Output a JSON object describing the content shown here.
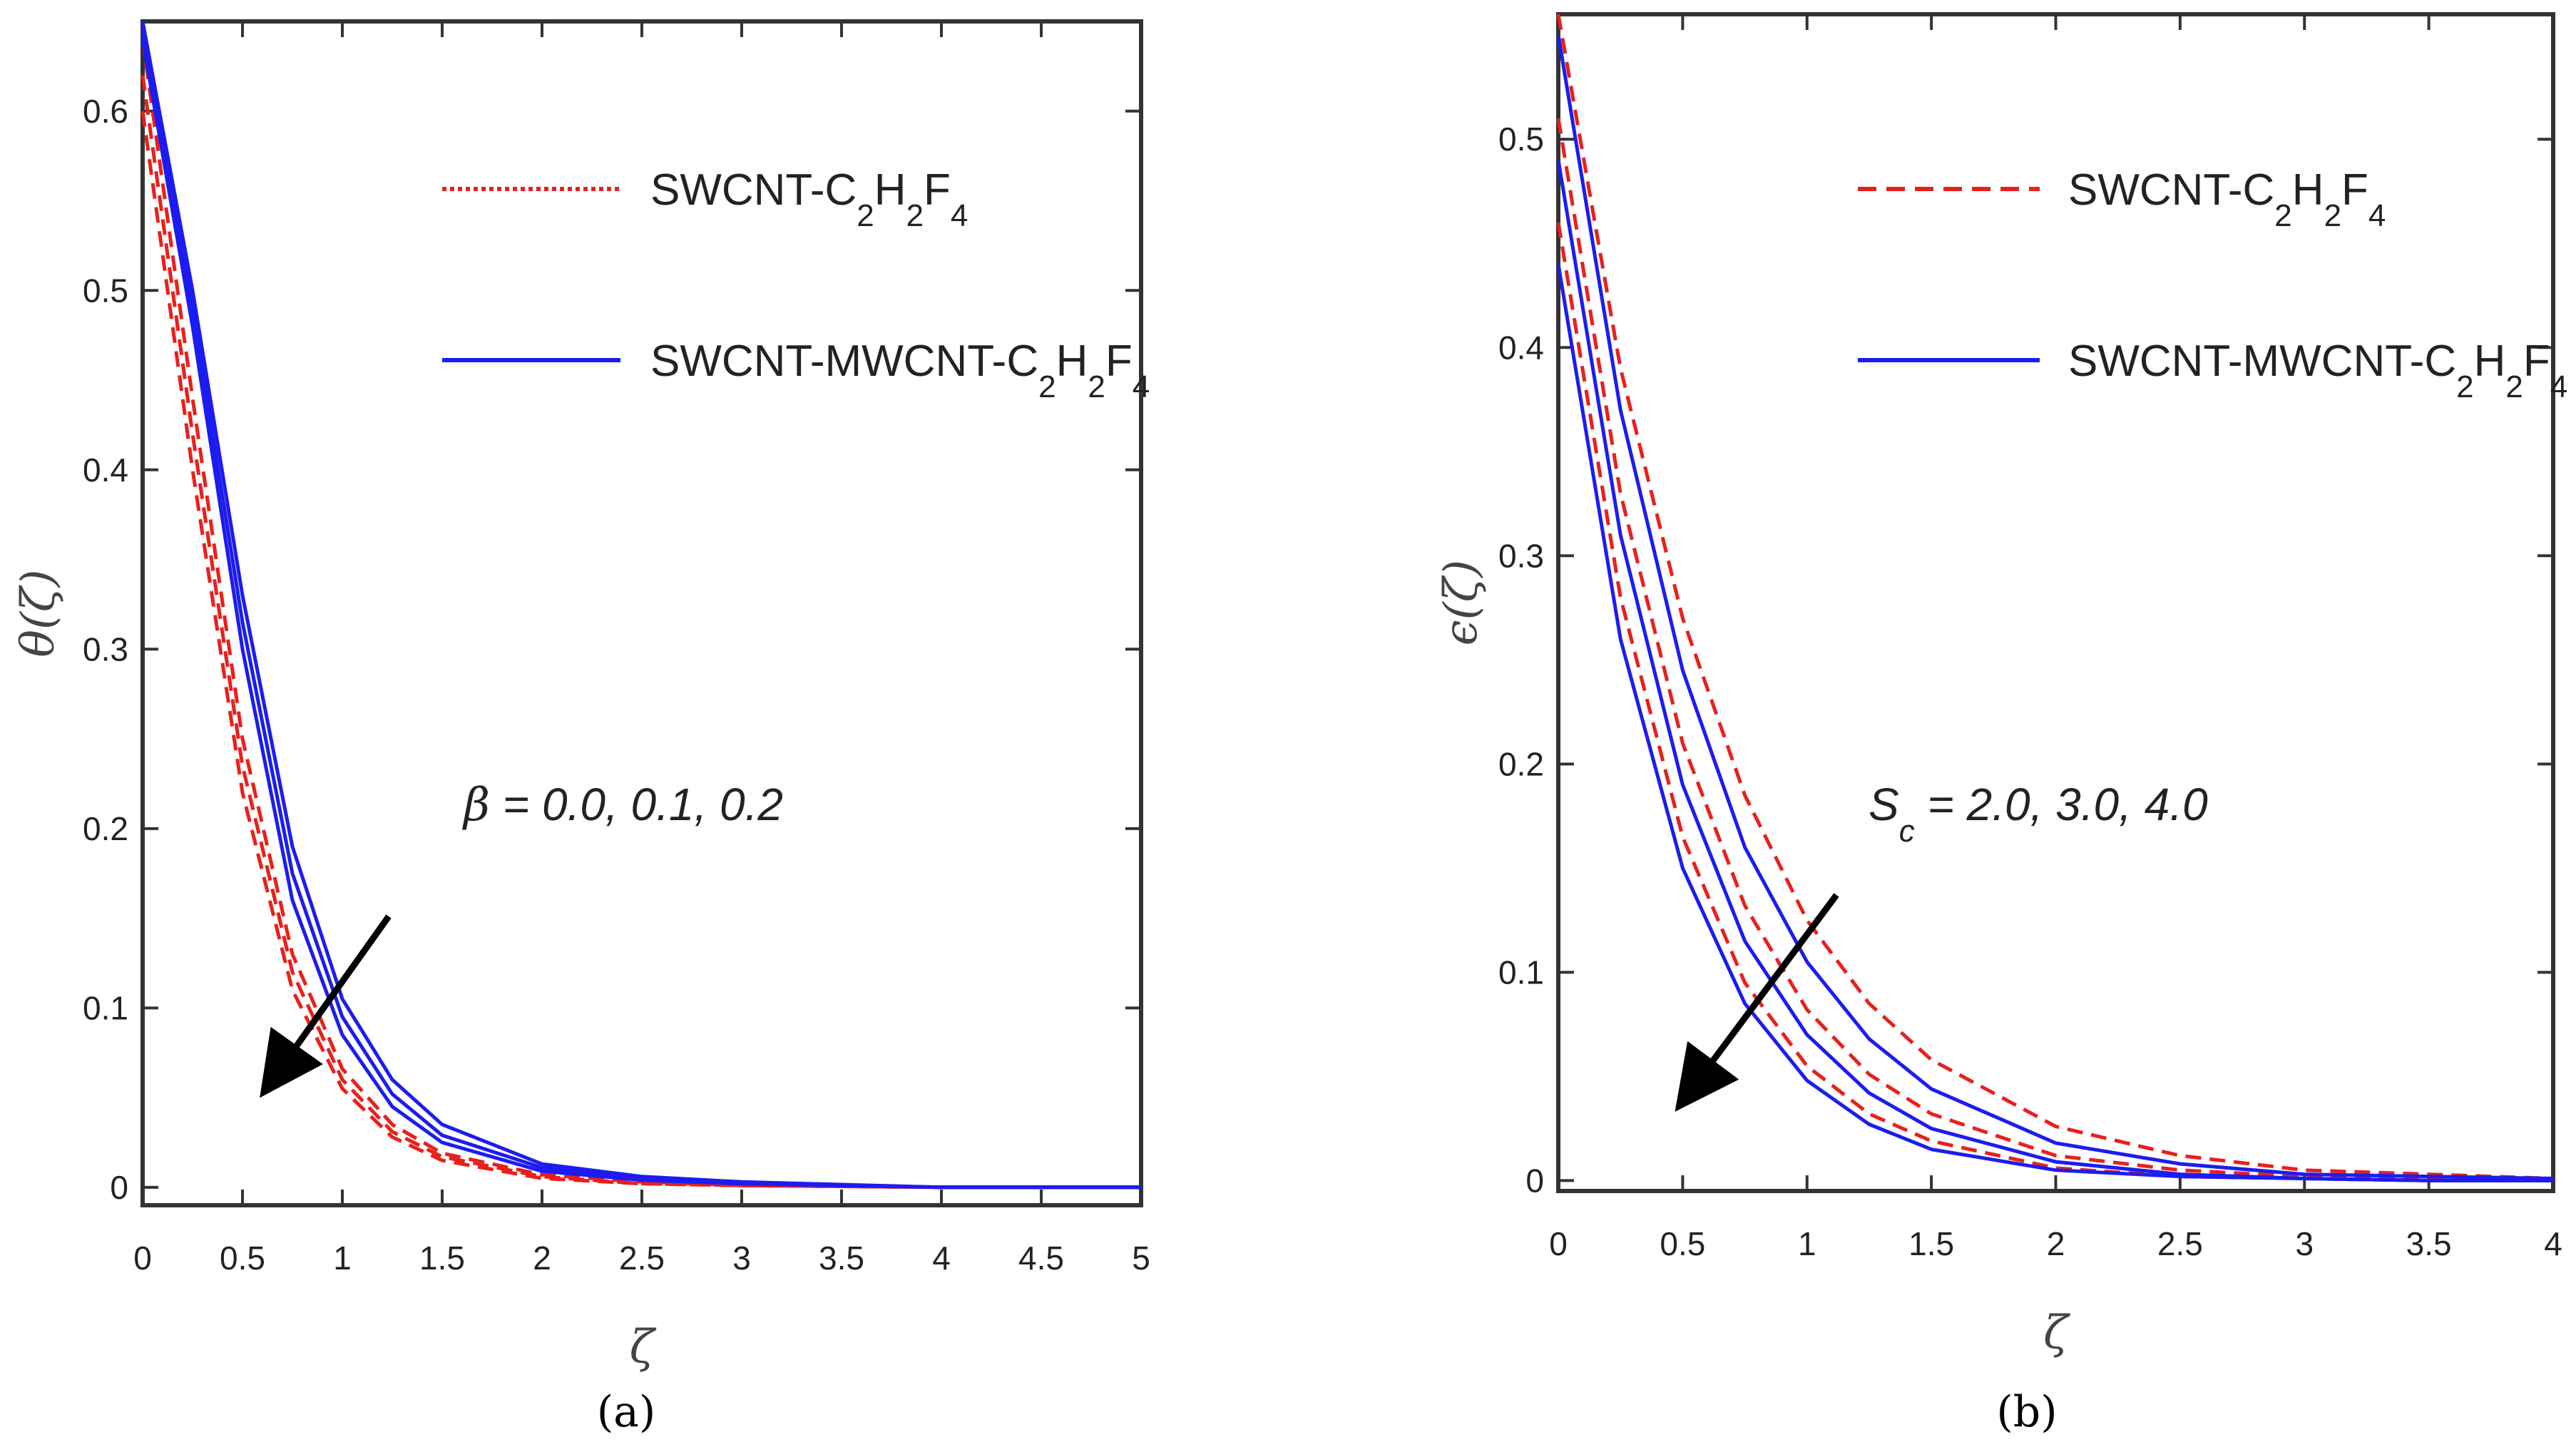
{
  "colors": {
    "swcnt": "#e8201c",
    "hybrid": "#1c1cf0",
    "arrow": "#000000",
    "axes": "#333333"
  },
  "chart_data": [
    {
      "type": "line",
      "panel_label": "(a)",
      "xlabel": "ζ",
      "ylabel": "θ(ζ)",
      "xlim": [
        0,
        5
      ],
      "ylim": [
        -0.01,
        0.65
      ],
      "xticks": [
        0,
        0.5,
        1,
        1.5,
        2,
        2.5,
        3,
        3.5,
        4,
        4.5,
        5
      ],
      "xtick_labels": [
        "0",
        "0.5",
        "1",
        "1.5",
        "2",
        "2.5",
        "3",
        "3.5",
        "4",
        "4.5",
        "5"
      ],
      "yticks": [
        0,
        0.1,
        0.2,
        0.3,
        0.4,
        0.5,
        0.6
      ],
      "ytick_labels": [
        "0",
        "0.1",
        "0.2",
        "0.3",
        "0.4",
        "0.5",
        "0.6"
      ],
      "legend": [
        {
          "key": "swcnt",
          "base": "SWCNT-C",
          "sub1": "2",
          "mid": "H",
          "sub2": "2",
          "end": "F",
          "sub3": "4",
          "style": "dotted"
        },
        {
          "key": "hybrid",
          "base": "SWCNT-MWCNT-C",
          "sub1": "2",
          "mid": "H",
          "sub2": "2",
          "end": "F",
          "sub3": "4",
          "style": "solid"
        }
      ],
      "annotation": {
        "symbol": "β",
        "text": " = 0.0, 0.1, 0.2"
      },
      "series": [
        {
          "name": "SWCNT-C2H2F4 β=0.0",
          "group": "swcnt",
          "dash": "dashed",
          "x": [
            0,
            0.25,
            0.5,
            0.75,
            1,
            1.25,
            1.5,
            2,
            2.5,
            3,
            4,
            5
          ],
          "values": [
            0.6,
            0.4,
            0.22,
            0.11,
            0.055,
            0.028,
            0.015,
            0.005,
            0.002,
            0.001,
            0,
            0
          ]
        },
        {
          "name": "SWCNT-C2H2F4 β=0.1",
          "group": "swcnt",
          "dash": "dashed",
          "x": [
            0,
            0.25,
            0.5,
            0.75,
            1,
            1.25,
            1.5,
            2,
            2.5,
            3,
            4,
            5
          ],
          "values": [
            0.62,
            0.42,
            0.235,
            0.12,
            0.06,
            0.031,
            0.017,
            0.006,
            0.002,
            0.001,
            0,
            0
          ]
        },
        {
          "name": "SWCNT-C2H2F4 β=0.2",
          "group": "swcnt",
          "dash": "dashed",
          "x": [
            0,
            0.25,
            0.5,
            0.75,
            1,
            1.25,
            1.5,
            2,
            2.5,
            3,
            4,
            5
          ],
          "values": [
            0.64,
            0.44,
            0.25,
            0.13,
            0.066,
            0.035,
            0.019,
            0.007,
            0.003,
            0.001,
            0,
            0
          ]
        },
        {
          "name": "SWCNT-MWCNT-C2H2F4 β=0.0",
          "group": "hybrid",
          "dash": "solid",
          "x": [
            0,
            0.25,
            0.5,
            0.75,
            1,
            1.25,
            1.5,
            2,
            2.5,
            3,
            4,
            5
          ],
          "values": [
            0.64,
            0.48,
            0.3,
            0.16,
            0.085,
            0.045,
            0.025,
            0.009,
            0.004,
            0.002,
            0,
            0
          ]
        },
        {
          "name": "SWCNT-MWCNT-C2H2F4 β=0.1",
          "group": "hybrid",
          "dash": "solid",
          "x": [
            0,
            0.25,
            0.5,
            0.75,
            1,
            1.25,
            1.5,
            2,
            2.5,
            3,
            4,
            5
          ],
          "values": [
            0.645,
            0.49,
            0.315,
            0.175,
            0.095,
            0.052,
            0.029,
            0.011,
            0.005,
            0.002,
            0,
            0
          ]
        },
        {
          "name": "SWCNT-MWCNT-C2H2F4 β=0.2",
          "group": "hybrid",
          "dash": "solid",
          "x": [
            0,
            0.25,
            0.5,
            0.75,
            1,
            1.25,
            1.5,
            2,
            2.5,
            3,
            4,
            5
          ],
          "values": [
            0.65,
            0.5,
            0.33,
            0.19,
            0.105,
            0.06,
            0.035,
            0.013,
            0.006,
            0.003,
            0,
            0
          ]
        }
      ]
    },
    {
      "type": "line",
      "panel_label": "(b)",
      "xlabel": "ζ",
      "ylabel": "ϵ(ζ)",
      "xlim": [
        0,
        4
      ],
      "ylim": [
        -0.005,
        0.56
      ],
      "xticks": [
        0,
        0.5,
        1,
        1.5,
        2,
        2.5,
        3,
        3.5,
        4
      ],
      "xtick_labels": [
        "0",
        "0.5",
        "1",
        "1.5",
        "2",
        "2.5",
        "3",
        "3.5",
        "4"
      ],
      "yticks": [
        0,
        0.1,
        0.2,
        0.3,
        0.4,
        0.5
      ],
      "ytick_labels": [
        "0",
        "0.1",
        "0.2",
        "0.3",
        "0.4",
        "0.5"
      ],
      "legend": [
        {
          "key": "swcnt",
          "base": "SWCNT-C",
          "sub1": "2",
          "mid": "H",
          "sub2": "2",
          "end": "F",
          "sub3": "4",
          "style": "dashed"
        },
        {
          "key": "hybrid",
          "base": "SWCNT-MWCNT-C",
          "sub1": "2",
          "mid": "H",
          "sub2": "2",
          "end": "F",
          "sub3": "4",
          "style": "solid"
        }
      ],
      "annotation": {
        "symbol": "S",
        "sub": "c",
        "text": " = 2.0, 3.0, 4.0"
      },
      "series": [
        {
          "name": "SWCNT-C2H2F4 Sc=2.0",
          "group": "swcnt",
          "dash": "dashed",
          "x": [
            0,
            0.25,
            0.5,
            0.75,
            1,
            1.25,
            1.5,
            2,
            2.5,
            3,
            3.5,
            4
          ],
          "values": [
            0.56,
            0.39,
            0.27,
            0.185,
            0.125,
            0.085,
            0.058,
            0.026,
            0.012,
            0.005,
            0.003,
            0.001
          ]
        },
        {
          "name": "SWCNT-C2H2F4 Sc=3.0",
          "group": "swcnt",
          "dash": "dashed",
          "x": [
            0,
            0.25,
            0.5,
            0.75,
            1,
            1.25,
            1.5,
            2,
            2.5,
            3,
            3.5,
            4
          ],
          "values": [
            0.51,
            0.33,
            0.21,
            0.132,
            0.082,
            0.051,
            0.032,
            0.012,
            0.005,
            0.002,
            0.001,
            0
          ]
        },
        {
          "name": "SWCNT-C2H2F4 Sc=4.0",
          "group": "swcnt",
          "dash": "dashed",
          "x": [
            0,
            0.25,
            0.5,
            0.75,
            1,
            1.25,
            1.5,
            2,
            2.5,
            3,
            3.5,
            4
          ],
          "values": [
            0.46,
            0.28,
            0.165,
            0.095,
            0.055,
            0.032,
            0.019,
            0.006,
            0.002,
            0.001,
            0,
            0
          ]
        },
        {
          "name": "SWCNT-MWCNT-C2H2F4 Sc=2.0",
          "group": "hybrid",
          "dash": "solid",
          "x": [
            0,
            0.25,
            0.5,
            0.75,
            1,
            1.25,
            1.5,
            2,
            2.5,
            3,
            3.5,
            4
          ],
          "values": [
            0.55,
            0.37,
            0.245,
            0.16,
            0.105,
            0.068,
            0.044,
            0.018,
            0.008,
            0.003,
            0.002,
            0.001
          ]
        },
        {
          "name": "SWCNT-MWCNT-C2H2F4 Sc=3.0",
          "group": "hybrid",
          "dash": "solid",
          "x": [
            0,
            0.25,
            0.5,
            0.75,
            1,
            1.25,
            1.5,
            2,
            2.5,
            3,
            3.5,
            4
          ],
          "values": [
            0.49,
            0.31,
            0.19,
            0.115,
            0.07,
            0.042,
            0.025,
            0.009,
            0.003,
            0.001,
            0,
            0
          ]
        },
        {
          "name": "SWCNT-MWCNT-C2H2F4 Sc=4.0",
          "group": "hybrid",
          "dash": "solid",
          "x": [
            0,
            0.25,
            0.5,
            0.75,
            1,
            1.25,
            1.5,
            2,
            2.5,
            3,
            3.5,
            4
          ],
          "values": [
            0.44,
            0.26,
            0.15,
            0.085,
            0.048,
            0.027,
            0.015,
            0.005,
            0.002,
            0.001,
            0,
            0
          ]
        }
      ]
    }
  ]
}
